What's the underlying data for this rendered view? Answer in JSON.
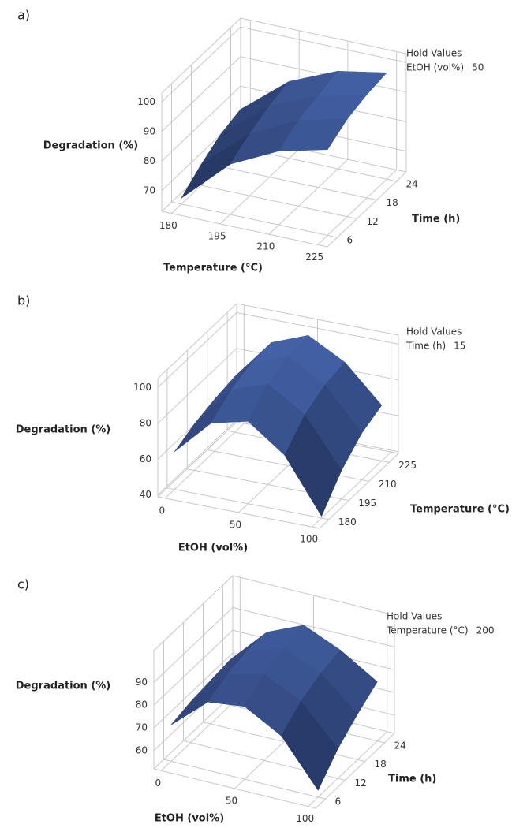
{
  "chart_data": [
    {
      "type": "surface",
      "panel_label": "a)",
      "zlabel": "Degradation (%)",
      "zlim": [
        63,
        103
      ],
      "zticks": [
        70,
        80,
        90,
        100
      ],
      "xlabel": "Temperature (°C)",
      "xlim": [
        177,
        228
      ],
      "xticks": [
        180,
        195,
        210,
        225
      ],
      "ylabel": "Time (h)",
      "ylim": [
        3,
        27
      ],
      "yticks": [
        6,
        12,
        18,
        24
      ],
      "hold_title": "Hold Values",
      "hold_label": "EtOH (vol%)",
      "hold_value": 50,
      "surface_x": [
        180,
        195,
        210,
        225
      ],
      "surface_y": [
        6,
        12,
        18,
        24
      ],
      "surface_z": [
        [
          65,
          80,
          88,
          92
        ],
        [
          70,
          84,
          92,
          96
        ],
        [
          74,
          87,
          94,
          98
        ],
        [
          76,
          89,
          96,
          99
        ]
      ]
    },
    {
      "type": "surface",
      "panel_label": "b)",
      "zlabel": "Degradation (%)",
      "zlim": [
        39,
        105
      ],
      "zticks": [
        40,
        60,
        80,
        100
      ],
      "xlabel": "EtOH (vol%)",
      "xlim": [
        -5,
        105
      ],
      "xticks": [
        0,
        50,
        100
      ],
      "ylabel": "Temperature (°C)",
      "ylim": [
        173,
        232
      ],
      "yticks": [
        180,
        195,
        210,
        225
      ],
      "hold_title": "Hold Values",
      "hold_label": "Time (h)",
      "hold_value": 15,
      "surface_x": [
        0,
        25,
        50,
        75,
        100
      ],
      "surface_y": [
        180,
        195,
        210,
        225
      ],
      "surface_z": [
        [
          60,
          80,
          85,
          70,
          40
        ],
        [
          65,
          88,
          95,
          82,
          55
        ],
        [
          68,
          92,
          100,
          88,
          65
        ],
        [
          70,
          93,
          101,
          90,
          70
        ]
      ]
    },
    {
      "type": "surface",
      "panel_label": "c)",
      "zlabel": "Degradation (%)",
      "zlim": [
        52,
        104
      ],
      "zticks": [
        60,
        70,
        80,
        90
      ],
      "xlabel": "EtOH (vol%)",
      "xlim": [
        -5,
        105
      ],
      "xticks": [
        0,
        50,
        100
      ],
      "ylabel": "Time (h)",
      "ylim": [
        3,
        27
      ],
      "yticks": [
        6,
        12,
        18,
        24
      ],
      "hold_title": "Hold Values",
      "hold_label": "Temperature (°C)",
      "hold_value": 200,
      "surface_x": [
        0,
        25,
        50,
        75,
        100
      ],
      "surface_y": [
        6,
        12,
        18,
        24
      ],
      "surface_z": [
        [
          68,
          82,
          84,
          75,
          55
        ],
        [
          70,
          86,
          90,
          82,
          65
        ],
        [
          71,
          88,
          93,
          86,
          72
        ],
        [
          72,
          88,
          95,
          88,
          78
        ]
      ]
    }
  ]
}
